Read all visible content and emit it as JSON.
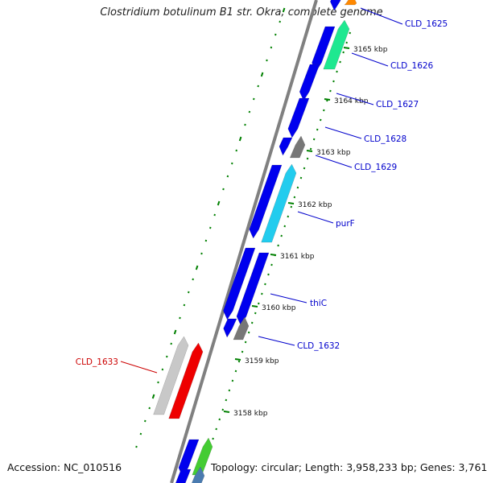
{
  "title": "Clostridium botulinum B1 str. Okra, complete genome",
  "accession": "Accession: NC_010516",
  "topology": "Topology: circular; Length: 3,958,233 bp; Genes: 3,761",
  "ticks": [
    "3165 kbp",
    "3164 kbp",
    "3163 kbp",
    "3162 kbp",
    "3161 kbp",
    "3160 kbp",
    "3159 kbp",
    "3158 kbp"
  ],
  "genes": [
    {
      "label": "CLD_1625",
      "color": "#0000cc"
    },
    {
      "label": "CLD_1626",
      "color": "#0000cc"
    },
    {
      "label": "CLD_1627",
      "color": "#0000cc"
    },
    {
      "label": "CLD_1628",
      "color": "#0000cc"
    },
    {
      "label": "CLD_1629",
      "color": "#0000cc"
    },
    {
      "label": "purF",
      "color": "#0000cc"
    },
    {
      "label": "thiC",
      "color": "#0000cc"
    },
    {
      "label": "CLD_1632",
      "color": "#0000cc"
    },
    {
      "label": "CLD_1633",
      "color": "#cc0000"
    }
  ],
  "colors": {
    "cds_blue": "#0000ee",
    "green_feature": "#1ee890",
    "cyan_feature": "#22ccee",
    "gray_feature": "#777777",
    "pseudo_feature": "#c8c8c8",
    "red_feature": "#ee0000",
    "orange_feature": "#ff8800",
    "light_green_feature": "#44cc33",
    "steel_feature": "#4a7bb0",
    "dotted_ring": "#008000",
    "backbone": "#808080"
  }
}
